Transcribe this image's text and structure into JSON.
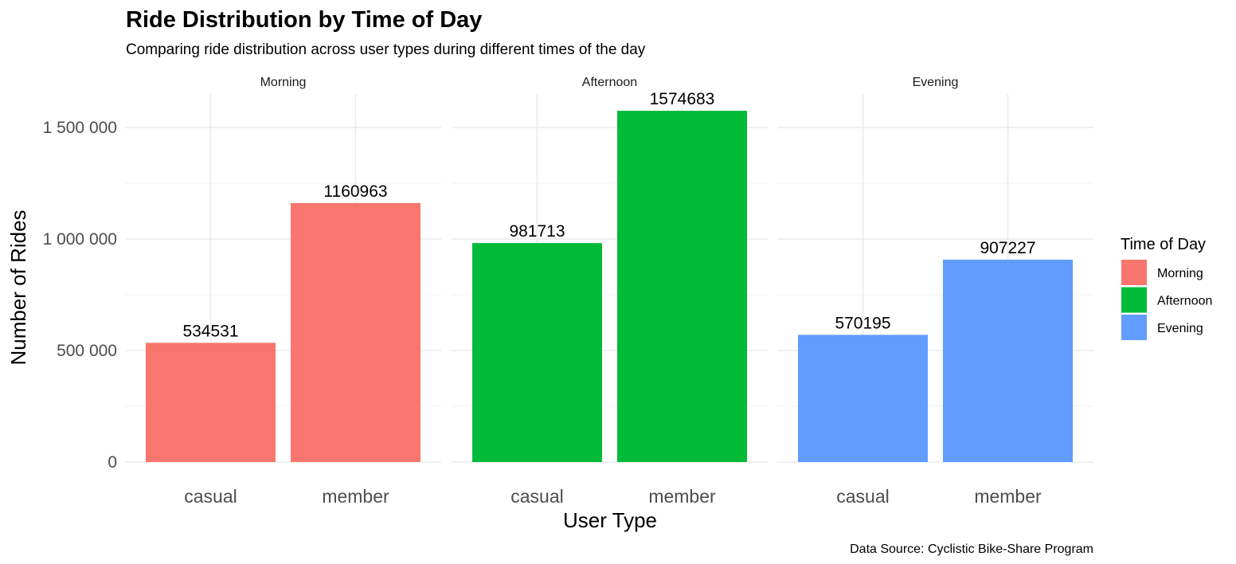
{
  "chart_data": {
    "type": "bar",
    "title": "Ride Distribution by Time of Day",
    "subtitle": "Comparing ride distribution across user types during different times of the day",
    "xlabel": "User Type",
    "ylabel": "Number of Rides",
    "caption": "Data Source: Cyclistic Bike-Share Program",
    "ylim": [
      0,
      1650000
    ],
    "yticks": [
      0,
      500000,
      1000000,
      1500000
    ],
    "ytick_labels": [
      "0",
      "500 000",
      "1 000 000",
      "1 500 000"
    ],
    "grid": true,
    "categories": [
      "casual",
      "member"
    ],
    "facets": [
      {
        "name": "Morning",
        "color": "#F8766D",
        "values": [
          534531,
          1160963
        ],
        "labels": [
          "534531",
          "1160963"
        ]
      },
      {
        "name": "Afternoon",
        "color": "#00BA38",
        "values": [
          981713,
          1574683
        ],
        "labels": [
          "981713",
          "1574683"
        ]
      },
      {
        "name": "Evening",
        "color": "#619CFF",
        "values": [
          570195,
          907227
        ],
        "labels": [
          "570195",
          "907227"
        ]
      }
    ],
    "legend": {
      "title": "Time of Day",
      "placement": "right",
      "entries": [
        {
          "label": "Morning",
          "color": "#F8766D"
        },
        {
          "label": "Afternoon",
          "color": "#00BA38"
        },
        {
          "label": "Evening",
          "color": "#619CFF"
        }
      ]
    }
  }
}
